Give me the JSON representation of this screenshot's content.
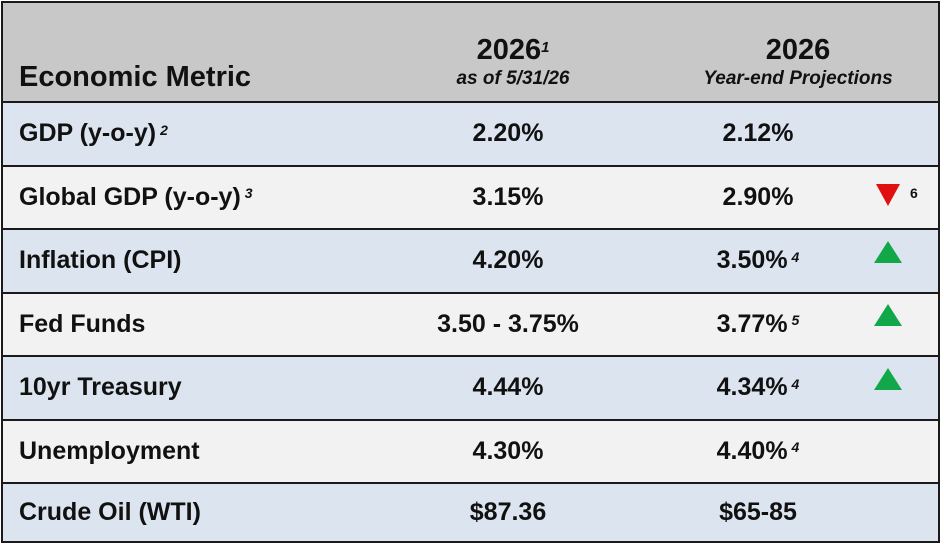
{
  "colors": {
    "header_bg": "#c8c8c8",
    "row_blue": "#dce5ef",
    "row_gray": "#f2f2f2",
    "border": "#1a1a1a",
    "arrow_up": "#12a84a",
    "arrow_down": "#e01010"
  },
  "header": {
    "metric_label": "Economic Metric",
    "col_current_year": "2026",
    "col_current_note": "1",
    "col_current_sub": "as of 5/31/26",
    "col_proj_year": "2026",
    "col_proj_sub": "Year-end Projections"
  },
  "rows": [
    {
      "metric": "GDP (y-o-y)",
      "metric_note": "2",
      "current": "2.20%",
      "projection": "2.12%",
      "projection_note": "",
      "indicator": "none",
      "indicator_note": "",
      "bg": "row_blue"
    },
    {
      "metric": "Global GDP (y-o-y)",
      "metric_note": "3",
      "current": "3.15%",
      "projection": "2.90%",
      "projection_note": "",
      "indicator": "down",
      "indicator_note": "6",
      "bg": "row_gray"
    },
    {
      "metric": "Inflation (CPI)",
      "metric_note": "",
      "current": "4.20%",
      "projection": "3.50%",
      "projection_note": "4",
      "indicator": "up",
      "indicator_note": "",
      "bg": "row_blue"
    },
    {
      "metric": "Fed Funds",
      "metric_note": "",
      "current": "3.50 - 3.75%",
      "projection": "3.77%",
      "projection_note": "5",
      "indicator": "up",
      "indicator_note": "",
      "bg": "row_gray"
    },
    {
      "metric": "10yr Treasury",
      "metric_note": "",
      "current": "4.44%",
      "projection": "4.34%",
      "projection_note": "4",
      "indicator": "up",
      "indicator_note": "",
      "bg": "row_blue"
    },
    {
      "metric": "Unemployment",
      "metric_note": "",
      "current": "4.30%",
      "projection": "4.40%",
      "projection_note": "4",
      "indicator": "none",
      "indicator_note": "",
      "bg": "row_gray"
    },
    {
      "metric": "Crude Oil (WTI)",
      "metric_note": "",
      "current": "$87.36",
      "projection": "$65-85",
      "projection_note": "",
      "indicator": "none",
      "indicator_note": "",
      "bg": "row_blue"
    }
  ]
}
